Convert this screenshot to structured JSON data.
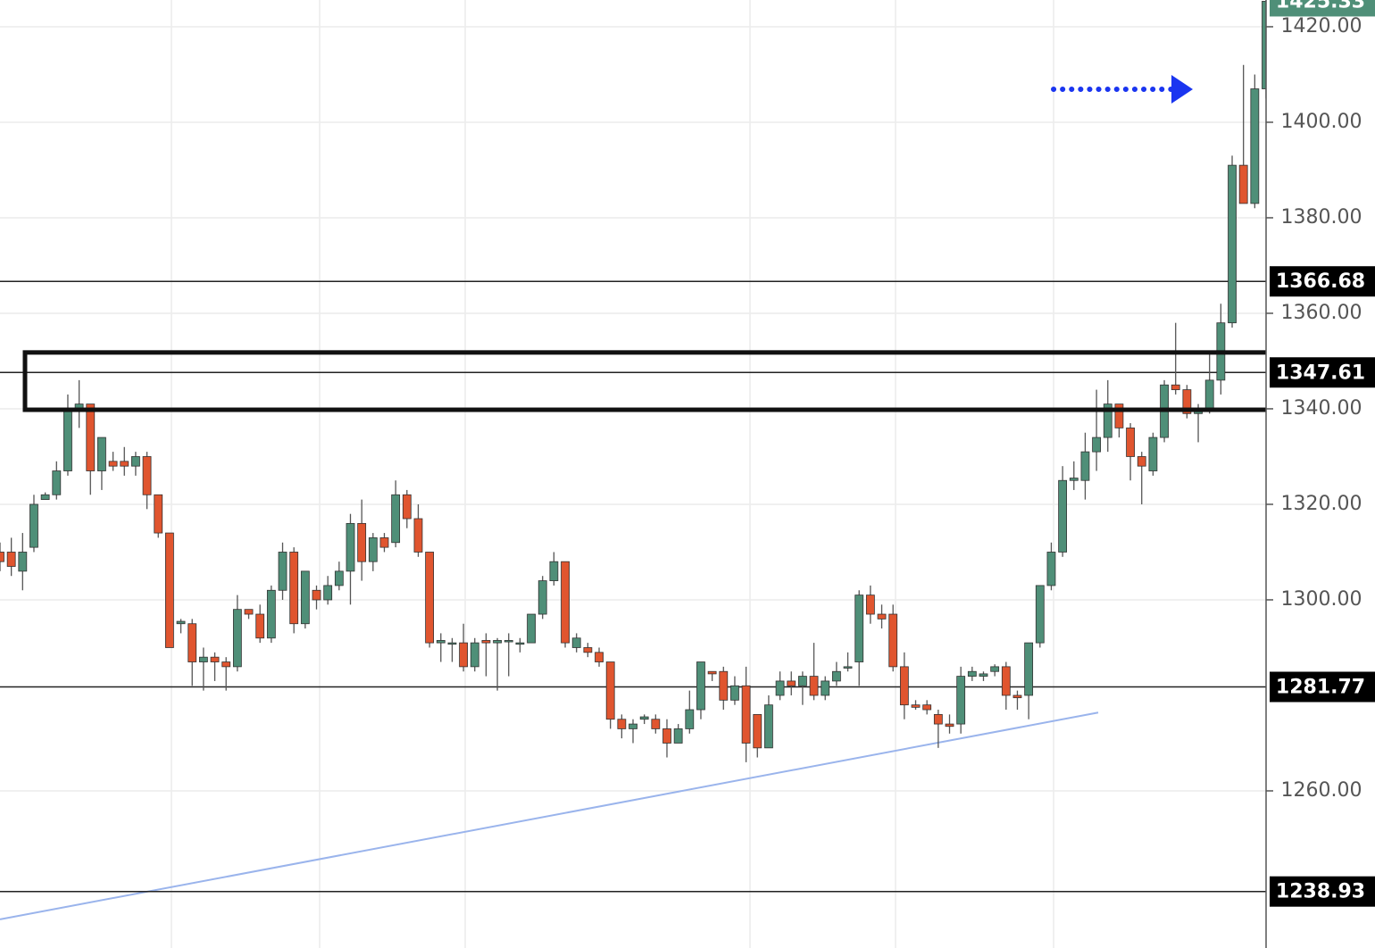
{
  "chart_data": {
    "type": "candlestick",
    "up_color": "#4f8f78",
    "down_color": "#e0552f",
    "grid": true,
    "ylim": [
      1227.1,
      1425.6
    ],
    "yticks": [
      {
        "value": 1260,
        "label": "1260.00"
      },
      {
        "value": 1300,
        "label": "1300.00"
      },
      {
        "value": 1320,
        "label": "1320.00"
      },
      {
        "value": 1340,
        "label": "1340.00"
      },
      {
        "value": 1360,
        "label": "1360.00"
      },
      {
        "value": 1380,
        "label": "1380.00"
      },
      {
        "value": 1400,
        "label": "1400.00"
      },
      {
        "value": 1420,
        "label": "1420.00"
      }
    ],
    "levels": [
      1366.68,
      1347.61,
      1281.77,
      1238.93
    ],
    "zone": {
      "low": 1339.8,
      "high": 1351.8
    },
    "trendline": {
      "from": 1233.1,
      "to": 1276.4
    },
    "open": [
      1310,
      1310,
      1306,
      1311,
      1321,
      1322,
      1327,
      1340,
      1341,
      1327,
      1329,
      1329,
      1328,
      1330,
      1322,
      1314,
      1295,
      1295,
      1287,
      1288,
      1287,
      1286,
      1298,
      1297,
      1292,
      1302,
      1310,
      1295,
      1302,
      1300,
      1303,
      1306,
      1316,
      1308,
      1313,
      1312,
      1322,
      1317,
      1310,
      1291,
      1291,
      1291,
      1286,
      1291.5,
      1291,
      1291.5,
      1291,
      1291,
      1297,
      1304,
      1308,
      1290,
      1290,
      1289,
      1287,
      1275,
      1273,
      1275,
      1275,
      1273,
      1270,
      1273,
      1277,
      1285,
      1285,
      1279,
      1282,
      1276,
      1269,
      1280,
      1283,
      1282,
      1284,
      1280,
      1283,
      1286,
      1287,
      1301,
      1297,
      1297,
      1286,
      1278,
      1278,
      1276,
      1274,
      1274,
      1284,
      1284,
      1285,
      1286,
      1280,
      1280,
      1291,
      1303,
      1310,
      1325,
      1325,
      1331,
      1334,
      1341,
      1336,
      1330,
      1327,
      1334,
      1345,
      1344,
      1339,
      1340,
      1346,
      1358,
      1391,
      1383,
      1407
    ],
    "high": [
      1312,
      1313,
      1314,
      1322,
      1322.5,
      1329,
      1343,
      1346,
      1341,
      1334,
      1331,
      1332,
      1331,
      1331,
      1322,
      1314,
      1296,
      1296,
      1290,
      1289,
      1288,
      1301,
      1298,
      1299,
      1303,
      1312,
      1311,
      1306,
      1303,
      1305,
      1308,
      1318,
      1321,
      1314,
      1314,
      1325,
      1323,
      1320,
      1310,
      1293,
      1292,
      1295,
      1292,
      1293,
      1292,
      1293,
      1292,
      1297,
      1305,
      1310,
      1308,
      1293,
      1291,
      1290,
      1287,
      1276,
      1275,
      1276,
      1276,
      1275,
      1274,
      1281,
      1287,
      1285,
      1286,
      1284,
      1286,
      1276,
      1280,
      1285,
      1285,
      1285,
      1291,
      1284,
      1287,
      1289,
      1302,
      1303,
      1299,
      1299,
      1289,
      1279,
      1279,
      1277,
      1276,
      1286,
      1286,
      1285,
      1286.5,
      1287,
      1281,
      1291,
      1303,
      1312,
      1328,
      1329,
      1335,
      1344,
      1346,
      1341,
      1337,
      1331,
      1335,
      1346,
      1358,
      1345,
      1341,
      1352,
      1362,
      1393,
      1412,
      1410,
      1426
    ],
    "low": [
      1306,
      1305,
      1302,
      1310,
      1321,
      1321,
      1326,
      1336,
      1322,
      1323,
      1327,
      1326,
      1326,
      1319,
      1313,
      1290,
      1293,
      1282,
      1281,
      1283,
      1281,
      1285,
      1296,
      1291,
      1291,
      1300,
      1293,
      1294,
      1298,
      1299,
      1302,
      1299,
      1304,
      1306,
      1310,
      1311,
      1315,
      1309,
      1290,
      1287,
      1287,
      1285,
      1285,
      1284,
      1281,
      1284,
      1289,
      1291,
      1296,
      1303,
      1290,
      1289,
      1288,
      1286,
      1273,
      1271,
      1270,
      1274,
      1272,
      1267,
      1270,
      1272,
      1275,
      1283,
      1277,
      1278,
      1266,
      1267,
      1269,
      1279,
      1280,
      1278,
      1279,
      1279,
      1282,
      1285,
      1282,
      1295,
      1294,
      1285,
      1275,
      1277,
      1276,
      1269,
      1272,
      1272,
      1283,
      1283,
      1284,
      1277,
      1277,
      1275,
      1290,
      1302,
      1309,
      1323,
      1321,
      1327,
      1331,
      1334,
      1325,
      1320,
      1326,
      1333,
      1343,
      1338,
      1333,
      1339,
      1343,
      1357,
      1383,
      1382,
      1405
    ],
    "close": [
      1308,
      1307,
      1310,
      1320,
      1322,
      1327,
      1340,
      1341,
      1327,
      1334,
      1328,
      1328,
      1330,
      1322,
      1314,
      1290,
      1295.5,
      1287,
      1288,
      1287,
      1286,
      1298,
      1297,
      1292,
      1302,
      1310,
      1295,
      1306,
      1300,
      1303,
      1306,
      1316,
      1308,
      1313,
      1311,
      1322,
      1317,
      1310,
      1291,
      1291.5,
      1291,
      1286,
      1291,
      1291,
      1291.5,
      1291.5,
      1291,
      1297,
      1304,
      1308,
      1291,
      1292,
      1289,
      1287,
      1275,
      1273,
      1274,
      1275.5,
      1273,
      1270,
      1273,
      1277,
      1287,
      1284.5,
      1279,
      1282,
      1270,
      1269,
      1278,
      1283,
      1282,
      1284,
      1280,
      1283,
      1285,
      1286,
      1301,
      1297,
      1296,
      1286,
      1278,
      1277.5,
      1277,
      1274,
      1273.5,
      1284,
      1285,
      1284.5,
      1286,
      1280,
      1279.5,
      1291,
      1303,
      1310,
      1325,
      1325.5,
      1331,
      1334,
      1341,
      1336,
      1330,
      1328,
      1334,
      1345,
      1344,
      1339,
      1340,
      1346,
      1358,
      1391,
      1383,
      1407,
      1425.33
    ]
  }
}
